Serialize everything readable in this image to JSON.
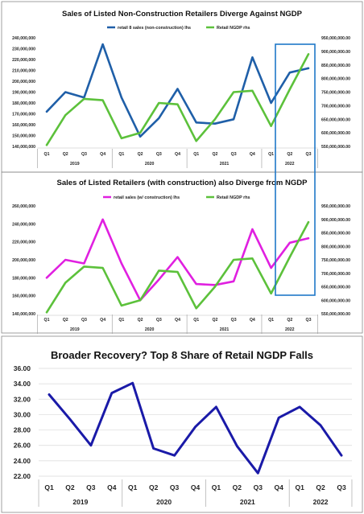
{
  "chart_data": [
    {
      "type": "line",
      "title": "Sales of Listed  Non-Construction Retailers Diverge Against NGDP",
      "quarters": [
        "Q1",
        "Q2",
        "Q3",
        "Q4",
        "Q1",
        "Q2",
        "Q3",
        "Q4",
        "Q1",
        "Q2",
        "Q3",
        "Q4",
        "Q1",
        "Q2",
        "Q3"
      ],
      "years": [
        "2019",
        "2020",
        "2021",
        "2022"
      ],
      "y_left": {
        "min": 140000000,
        "max": 240000000,
        "step": 10000000,
        "ticks": [
          "140,000,000",
          "150,000,000",
          "160,000,000",
          "170,000,000",
          "180,000,000",
          "190,000,000",
          "200,000,000",
          "210,000,000",
          "220,000,000",
          "230,000,000",
          "240,000,000"
        ]
      },
      "y_right": {
        "min": 550000000,
        "max": 950000000,
        "step": 50000000,
        "ticks": [
          "550,000,000.00",
          "600,000,000.00",
          "650,000,000.00",
          "700,000,000.00",
          "750,000,000.00",
          "800,000,000.00",
          "850,000,000.00",
          "900,000,000.00",
          "950,000,000.00"
        ]
      },
      "series": [
        {
          "name": "retail 8 sales (non-construction) lhs",
          "axis": "left",
          "color": "#1f5fa8",
          "values": [
            172000000,
            190000000,
            185000000,
            234000000,
            185000000,
            149000000,
            166000000,
            193000000,
            162000000,
            161000000,
            165000000,
            222000000,
            180000000,
            208000000,
            212000000
          ]
        },
        {
          "name": "Retail NGDP rhs",
          "axis": "right",
          "color": "#5cc13b",
          "values": [
            555000000,
            665000000,
            725000000,
            720000000,
            580000000,
            600000000,
            710000000,
            705000000,
            570000000,
            650000000,
            750000000,
            755000000,
            625000000,
            760000000,
            890000000
          ]
        }
      ],
      "grid": false,
      "legend": "top"
    },
    {
      "type": "line",
      "title": "Sales of Listed Retailers (with construction) also Diverge from NGDP",
      "quarters": [
        "Q1",
        "Q2",
        "Q3",
        "Q4",
        "Q1",
        "Q2",
        "Q3",
        "Q4",
        "Q1",
        "Q2",
        "Q3",
        "Q4",
        "Q1",
        "Q2",
        "Q3"
      ],
      "years": [
        "2019",
        "2020",
        "2021",
        "2022"
      ],
      "y_left": {
        "min": 140000000,
        "max": 260000000,
        "step": 20000000,
        "ticks": [
          "140,000,000",
          "160,000,000",
          "180,000,000",
          "200,000,000",
          "220,000,000",
          "240,000,000",
          "260,000,000"
        ]
      },
      "y_right": {
        "min": 550000000,
        "max": 950000000,
        "step": 50000000,
        "ticks": [
          "550,000,000.00",
          "600,000,000.00",
          "650,000,000.00",
          "700,000,000.00",
          "750,000,000.00",
          "800,000,000.00",
          "850,000,000.00",
          "900,000,000.00",
          "950,000,000.00"
        ]
      },
      "series": [
        {
          "name": "retail sales (w/ construction) lhs",
          "axis": "left",
          "color": "#e020e0",
          "values": [
            180000000,
            200000000,
            196000000,
            245000000,
            196000000,
            155000000,
            178000000,
            203000000,
            173000000,
            172000000,
            176000000,
            234000000,
            191000000,
            219000000,
            224000000
          ]
        },
        {
          "name": "Retail NGDP rhs",
          "axis": "right",
          "color": "#5cc13b",
          "values": [
            555000000,
            665000000,
            725000000,
            720000000,
            580000000,
            600000000,
            710000000,
            705000000,
            570000000,
            650000000,
            750000000,
            755000000,
            625000000,
            760000000,
            890000000
          ]
        }
      ],
      "grid": false,
      "legend": "top"
    },
    {
      "type": "line",
      "title": "Broader Recovery? Top 8 Share of Retail NGDP Falls",
      "quarters": [
        "Q1",
        "Q2",
        "Q3",
        "Q4",
        "Q1",
        "Q2",
        "Q3",
        "Q4",
        "Q1",
        "Q2",
        "Q3",
        "Q4",
        "Q1",
        "Q2",
        "Q3"
      ],
      "years": [
        "2019",
        "2020",
        "2021",
        "2022"
      ],
      "y": {
        "min": 22,
        "max": 36,
        "step": 2,
        "ticks": [
          "22.00",
          "24.00",
          "26.00",
          "28.00",
          "30.00",
          "32.00",
          "34.00",
          "36.00"
        ]
      },
      "series": [
        {
          "name": "",
          "color": "#1a1aa8",
          "values": [
            32.6,
            29.4,
            26.0,
            32.8,
            34.1,
            25.6,
            24.7,
            28.4,
            31.0,
            25.9,
            22.4,
            29.6,
            31.0,
            28.6,
            24.7
          ]
        }
      ],
      "grid": true,
      "legend": "none"
    }
  ]
}
